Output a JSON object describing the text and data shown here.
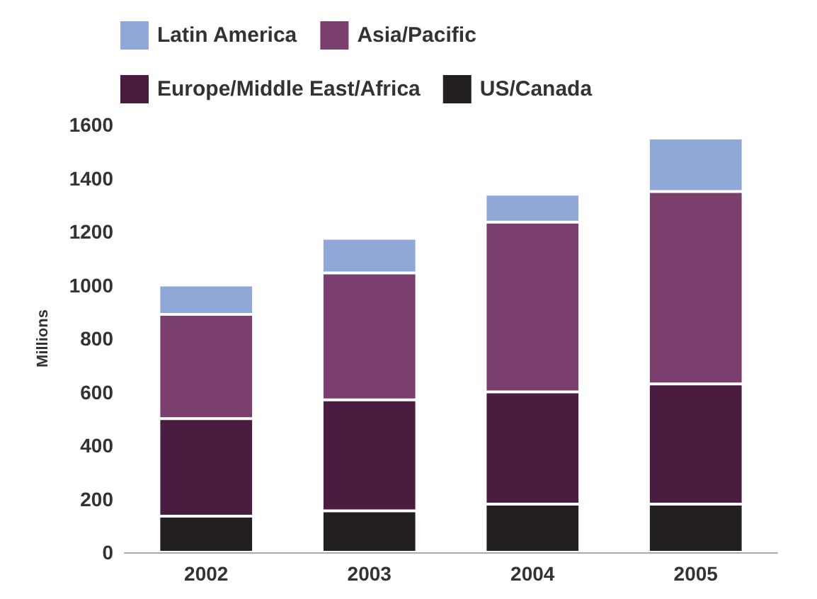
{
  "chart_data": {
    "type": "bar",
    "stacked": true,
    "ylabel": "Millions",
    "categories": [
      "2002",
      "2003",
      "2004",
      "2005"
    ],
    "series": [
      {
        "name": "US/Canada",
        "color": "#231f20",
        "values": [
          135,
          155,
          180,
          180
        ]
      },
      {
        "name": "Europe/Middle East/Africa",
        "color": "#4a1d40",
        "values": [
          365,
          415,
          420,
          450
        ]
      },
      {
        "name": "Asia/Pacific",
        "color": "#7b3f6e",
        "values": [
          390,
          475,
          635,
          720
        ]
      },
      {
        "name": "Latin America",
        "color": "#8fa8d8",
        "values": [
          110,
          130,
          105,
          200
        ]
      }
    ],
    "ylim": [
      0,
      1600
    ],
    "yticks": [
      0,
      200,
      400,
      600,
      800,
      1000,
      1200,
      1400,
      1600
    ],
    "grid": false,
    "legend": "top left"
  }
}
